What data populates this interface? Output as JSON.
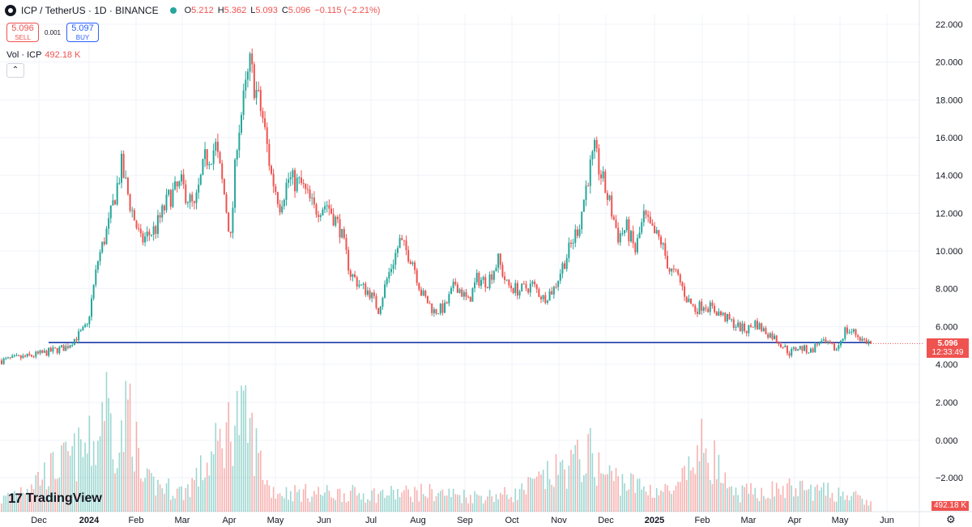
{
  "header": {
    "symbol": "ICP / TetherUS · 1D · BINANCE",
    "open_label": "O",
    "open": "5.212",
    "high_label": "H",
    "high": "5.362",
    "low_label": "L",
    "low": "5.093",
    "close_label": "C",
    "close": "5.096",
    "change": "−0.115 (−2.21%)"
  },
  "trade": {
    "sell_price": "5.096",
    "sell_label": "SELL",
    "spread": "0.001",
    "buy_price": "5.097",
    "buy_label": "BUY"
  },
  "volume_legend": {
    "label": "Vol · ICP",
    "value": "492.18 K"
  },
  "collapse_icon": "⌃",
  "last_price_tag": {
    "price": "5.096",
    "countdown": "12:33:49"
  },
  "volume_tag": "492.18 K",
  "branding": {
    "mark": "17",
    "name": "TradingView"
  },
  "settings_icon": "⚙",
  "colors": {
    "up": "#26a69a",
    "down": "#ef5350",
    "line": "#1e3aa8",
    "grid": "#f0f3fa"
  },
  "chart_data": {
    "type": "candlestick",
    "price_axis": {
      "ticks": [
        "22.000",
        "20.000",
        "18.000",
        "16.000",
        "14.000",
        "12.000",
        "10.000",
        "8.000",
        "6.000",
        "4.000"
      ],
      "ylim": [
        3.6,
        22.6
      ]
    },
    "volume_axis": {
      "ticks": [
        "2.000",
        "0.000",
        "−2.000"
      ]
    },
    "x_ticks": [
      "Dec",
      "2024",
      "Feb",
      "Mar",
      "Apr",
      "May",
      "Jun",
      "Jul",
      "Aug",
      "Sep",
      "Oct",
      "Nov",
      "Dec",
      "2025",
      "Feb",
      "Mar",
      "Apr",
      "May",
      "Jun"
    ],
    "horizontal_line": 5.15,
    "last_price": 5.096,
    "price_path": [
      [
        0,
        4.2
      ],
      [
        12,
        4.4
      ],
      [
        20,
        4.6
      ],
      [
        30,
        4.9
      ],
      [
        40,
        6
      ],
      [
        45,
        9.5
      ],
      [
        50,
        11.4
      ],
      [
        56,
        14.5
      ],
      [
        60,
        12.5
      ],
      [
        65,
        10.5
      ],
      [
        72,
        11.2
      ],
      [
        78,
        12.8
      ],
      [
        84,
        13.5
      ],
      [
        90,
        12.2
      ],
      [
        95,
        14.8
      ],
      [
        100,
        15.5
      ],
      [
        104,
        13
      ],
      [
        107,
        10.6
      ],
      [
        110,
        16
      ],
      [
        116,
        19.8
      ],
      [
        122,
        17
      ],
      [
        126,
        14
      ],
      [
        130,
        12.5
      ],
      [
        134,
        13.8
      ],
      [
        140,
        13.5
      ],
      [
        146,
        12.2
      ],
      [
        152,
        12.5
      ],
      [
        158,
        11.2
      ],
      [
        163,
        8.8
      ],
      [
        168,
        8.1
      ],
      [
        172,
        7.8
      ],
      [
        176,
        6.9
      ],
      [
        180,
        8.5
      ],
      [
        186,
        10.5
      ],
      [
        192,
        9.5
      ],
      [
        196,
        7.8
      ],
      [
        202,
        6.8
      ],
      [
        207,
        7
      ],
      [
        212,
        8.3
      ],
      [
        218,
        7.3
      ],
      [
        222,
        8.5
      ],
      [
        227,
        8.4
      ],
      [
        232,
        9.5
      ],
      [
        236,
        8.2
      ],
      [
        242,
        7.9
      ],
      [
        248,
        8.2
      ],
      [
        253,
        7.5
      ],
      [
        258,
        8
      ],
      [
        262,
        9.2
      ],
      [
        266,
        10.3
      ],
      [
        270,
        11.5
      ],
      [
        274,
        14
      ],
      [
        277,
        15.2
      ],
      [
        280,
        14
      ],
      [
        284,
        12.5
      ],
      [
        288,
        10.8
      ],
      [
        292,
        11.2
      ],
      [
        296,
        10
      ],
      [
        300,
        11.8
      ],
      [
        304,
        11
      ],
      [
        308,
        10.5
      ],
      [
        312,
        9
      ],
      [
        316,
        8.6
      ],
      [
        320,
        7.5
      ],
      [
        324,
        6.9
      ],
      [
        328,
        7.2
      ],
      [
        334,
        6.8
      ],
      [
        340,
        6.3
      ],
      [
        344,
        6
      ],
      [
        348,
        5.8
      ],
      [
        352,
        6.2
      ],
      [
        356,
        5.8
      ],
      [
        360,
        5.5
      ],
      [
        364,
        5.1
      ],
      [
        368,
        4.6
      ],
      [
        372,
        4.9
      ],
      [
        378,
        4.7
      ],
      [
        382,
        5.2
      ],
      [
        386,
        5
      ],
      [
        390,
        4.8
      ],
      [
        394,
        5.8
      ],
      [
        398,
        5.7
      ],
      [
        402,
        5.3
      ],
      [
        406,
        5.1
      ]
    ],
    "volume": [
      [
        0,
        0.3
      ],
      [
        45,
        1.8
      ],
      [
        48,
        3.2
      ],
      [
        50,
        2.5
      ],
      [
        55,
        1.6
      ],
      [
        60,
        2.9
      ],
      [
        65,
        0.8
      ],
      [
        85,
        0.5
      ],
      [
        96,
        1.2
      ],
      [
        110,
        2.5
      ],
      [
        116,
        2.1
      ],
      [
        125,
        0.6
      ],
      [
        130,
        0.5
      ],
      [
        174,
        0.45
      ],
      [
        200,
        0.5
      ],
      [
        220,
        0.4
      ],
      [
        240,
        0.45
      ],
      [
        276,
        1.5
      ],
      [
        280,
        1
      ],
      [
        300,
        0.6
      ],
      [
        315,
        0.5
      ],
      [
        329,
        1.8
      ],
      [
        340,
        0.45
      ],
      [
        370,
        0.6
      ],
      [
        395,
        0.45
      ],
      [
        406,
        0.2
      ]
    ],
    "total_bars": 407
  }
}
